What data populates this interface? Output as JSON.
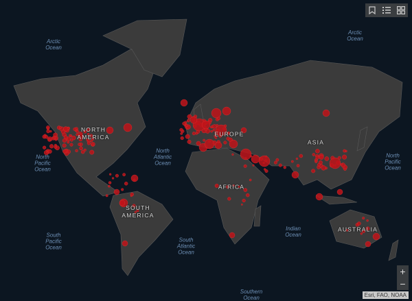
{
  "map": {
    "basemap_colors": {
      "ocean": "#0c1621",
      "land": "#3b3b3b",
      "borders": "#6a6a6a",
      "bubble": "#c0141a"
    },
    "ocean_labels": [
      {
        "id": "arctic-w",
        "text": "Arctic\nOcean"
      },
      {
        "id": "arctic-e",
        "text": "Arctic\nOcean"
      },
      {
        "id": "npac-w",
        "text": "North\nPacific\nOcean"
      },
      {
        "id": "natl",
        "text": "North\nAtlantic\nOcean"
      },
      {
        "id": "npac-e",
        "text": "North\nPacific\nOcean"
      },
      {
        "id": "spac",
        "text": "South\nPacific\nOcean"
      },
      {
        "id": "satl",
        "text": "South\nAtlantic\nOcean"
      },
      {
        "id": "indian",
        "text": "Indian\nOcean"
      },
      {
        "id": "southern",
        "text": "Southern\nOcean"
      }
    ],
    "continent_labels": [
      {
        "id": "na",
        "text": "NORTH\nAMERICA"
      },
      {
        "id": "sa",
        "text": "SOUTH\nAMERICA"
      },
      {
        "id": "eu",
        "text": "EUROPE"
      },
      {
        "id": "af",
        "text": "AFRICA"
      },
      {
        "id": "as",
        "text": "ASIA"
      },
      {
        "id": "au",
        "text": "AUSTRALIA"
      }
    ]
  },
  "toolbar": {
    "icons": [
      "bookmark-icon",
      "legend-list-icon",
      "basemap-gallery-icon"
    ]
  },
  "zoom": {
    "in_label": "+",
    "out_label": "−"
  },
  "attribution": "Esri, FAO, NOAA"
}
